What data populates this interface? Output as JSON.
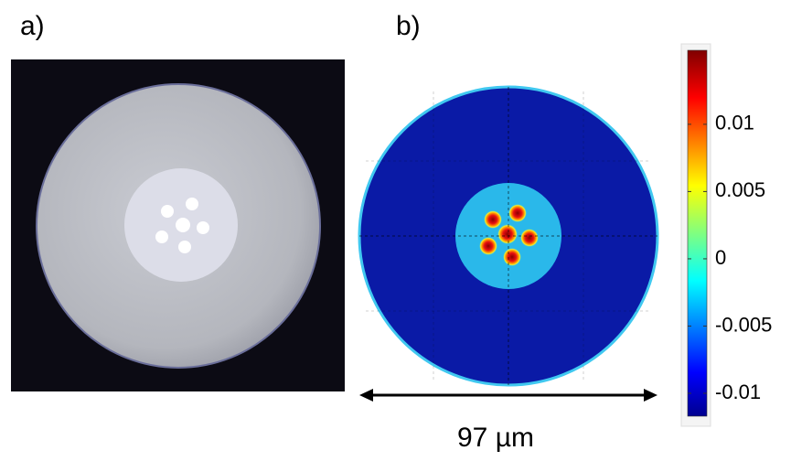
{
  "panels": [
    {
      "label": "a)"
    },
    {
      "label": "b)"
    }
  ],
  "colorbar": {
    "lim": [
      -0.0117,
      0.0155
    ],
    "ticks": [
      0.01,
      0.005,
      0,
      -0.005,
      -0.01
    ]
  },
  "scale_bar": {
    "label": "97 µm"
  }
}
